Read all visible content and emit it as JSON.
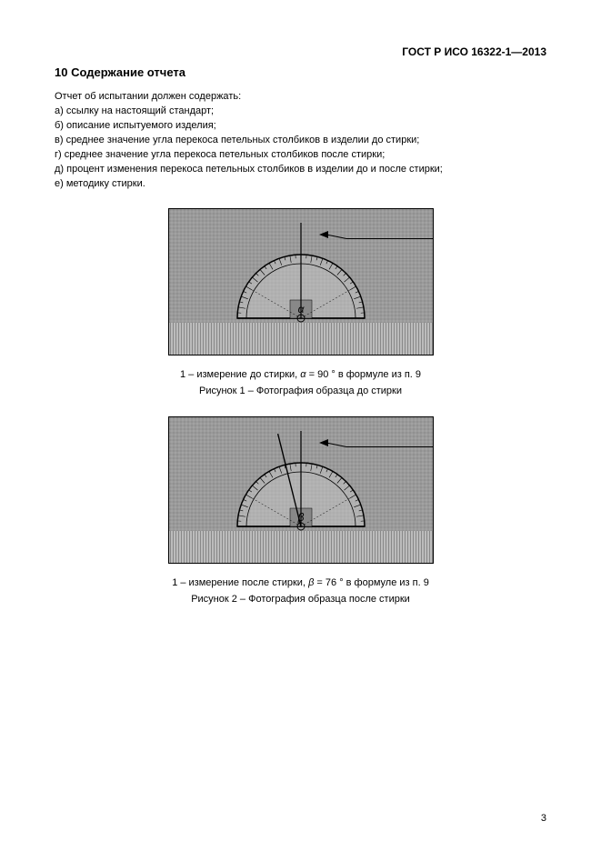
{
  "doc_id": "ГОСТ Р ИСО 16322-1—2013",
  "section": {
    "number": "10",
    "title": "Содержание отчета"
  },
  "intro": "Отчет об испытании должен содержать:",
  "items": {
    "a": "а) ссылку на настоящий стандарт;",
    "b": "б) описание испытуемого  изделия;",
    "c": "в) среднее значение угла перекоса петельных столбиков в изделии до стирки;",
    "d": "г) среднее значение угла перекоса петельных столбиков после стирки;",
    "e": "д) процент изменения  перекоса петельных столбиков в изделии до и после стирки;",
    "f": "е) методику стирки."
  },
  "figure1": {
    "callout": "1",
    "angle_label": "α",
    "angle_deg": 90,
    "caption_prefix": "1 – измерение до стирки, ",
    "caption_var": "α",
    "caption_suffix": " = 90 ° в формуле из п. 9",
    "title": "Рисунок 1 – Фотография образца до стирки",
    "colors": {
      "fabric": "#9a9a9a",
      "rib": "#bcbcbc",
      "protractor_stroke": "#000000",
      "protractor_fill": "#c4c4c4",
      "protractor_inner": "#888888",
      "line": "#000000"
    }
  },
  "figure2": {
    "callout": "1",
    "angle_label": "β",
    "angle_deg": 76,
    "caption_prefix": "1 – измерение после стирки, ",
    "caption_var": "β",
    "caption_suffix": " = 76 ° в формуле из п. 9",
    "title": "Рисунок 2 – Фотография образца после стирки",
    "colors": {
      "fabric": "#9a9a9a",
      "rib": "#bcbcbc",
      "protractor_stroke": "#000000",
      "protractor_fill": "#c4c4c4",
      "protractor_inner": "#888888",
      "line": "#000000"
    }
  },
  "page_number": "3"
}
